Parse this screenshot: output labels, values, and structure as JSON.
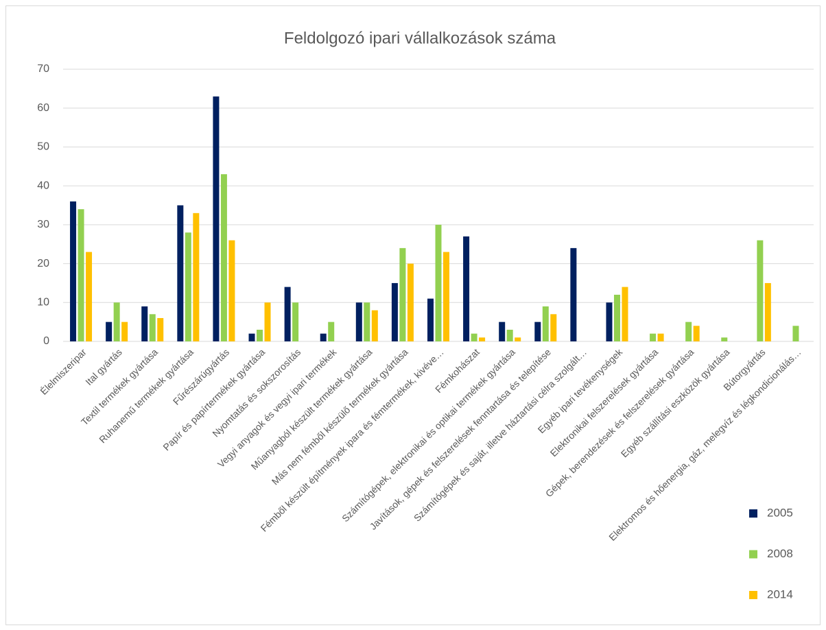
{
  "chart_data": {
    "type": "bar",
    "title": "Feldolgozó ipari vállalkozások száma",
    "categories": [
      "Élelmiszeripar",
      "Ital gyártás",
      "Textil termékek gyártása",
      "Ruhanemű termékek gyártása",
      "Fűrészárúgyártás",
      "Papír és papírtermékek gyártása",
      "Nyomtatás és sokszorosítás",
      "Vegyi anyagok és vegyi ipari termékek",
      "Műanyagból készült termékek gyártása",
      "Más nem fémből készülő termékek gyártása",
      "Fémből készült építmények ipara és fémtermékek, kivéve…",
      "Fémkohászat",
      "Számítógépek, elektronikai és optikai termékek gyártása",
      "Javítások, gépek és felszerelések fenntartása és telepítése",
      "Számítógépek és saját, illetve háztartási célra szolgált…",
      "Egyéb ipari tevékenységek",
      "Elektronikai felszerelések gyártása",
      "Gépek, berendezések és felszerelések gyártása",
      "Egyéb szállítási eszközök gyártása",
      "Bútorgyártás",
      "Elektromos és hőenergia, gáz, melegvíz és légkondicionálás…"
    ],
    "series": [
      {
        "name": "2005",
        "color": "#002060",
        "values": [
          36,
          5,
          9,
          35,
          63,
          2,
          14,
          2,
          10,
          15,
          11,
          27,
          5,
          5,
          24,
          10,
          0,
          0,
          0,
          0,
          0
        ]
      },
      {
        "name": "2008",
        "color": "#92d050",
        "values": [
          34,
          10,
          7,
          28,
          43,
          3,
          10,
          5,
          10,
          24,
          30,
          2,
          3,
          9,
          0,
          12,
          2,
          5,
          1,
          26,
          4
        ]
      },
      {
        "name": "2014",
        "color": "#ffc000",
        "values": [
          23,
          5,
          6,
          33,
          26,
          10,
          0,
          0,
          8,
          20,
          23,
          1,
          1,
          7,
          0,
          14,
          2,
          4,
          0,
          15,
          0
        ]
      }
    ],
    "ylim": [
      0,
      70
    ],
    "yticks": [
      0,
      10,
      20,
      30,
      40,
      50,
      60,
      70
    ],
    "grid": true,
    "legend": "right"
  }
}
